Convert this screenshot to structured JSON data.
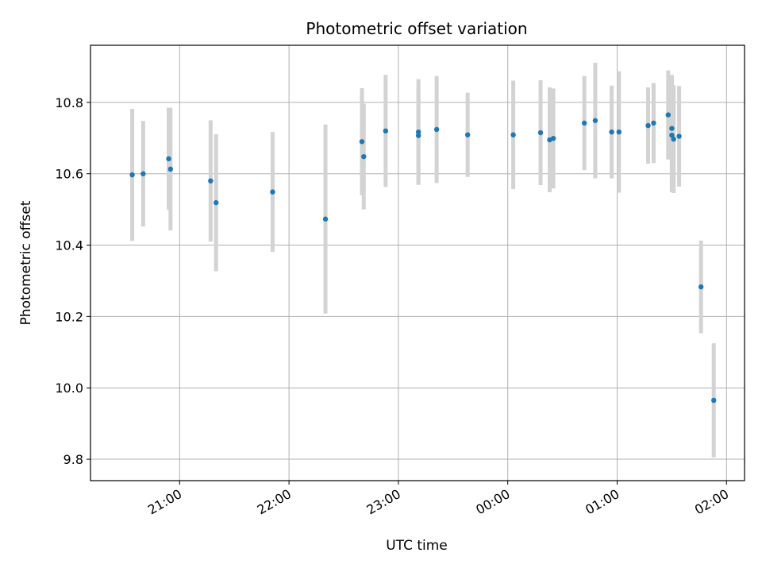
{
  "chart_data": {
    "type": "scatter",
    "title": "Photometric offset variation",
    "xlabel": "UTC time",
    "ylabel": "Photometric offset",
    "x_axis_kind": "time",
    "x_ticks": [
      "21:00",
      "22:00",
      "23:00",
      "00:00",
      "01:00",
      "02:00"
    ],
    "y_ticks": [
      9.8,
      10.0,
      10.2,
      10.4,
      10.6,
      10.8
    ],
    "ylim": [
      9.74,
      10.96
    ],
    "grid": true,
    "colors": {
      "point": "#1f77b4",
      "errorbar": "#d3d3d3",
      "grid": "#b0b0b0"
    },
    "series": [
      {
        "x": [
          "20:34",
          "20:40",
          "20:54",
          "20:55",
          "21:17",
          "21:20",
          "21:51",
          "22:20",
          "22:40",
          "22:41",
          "22:53",
          "23:11",
          "23:11",
          "23:21",
          "23:38",
          "00:03",
          "00:18",
          "00:23",
          "00:25",
          "00:42",
          "00:48",
          "00:57",
          "01:01",
          "01:17",
          "01:20",
          "01:28",
          "01:30",
          "01:30",
          "01:31",
          "01:34",
          "01:46",
          "01:53"
        ],
        "y": [
          10.597,
          10.6,
          10.642,
          10.613,
          10.58,
          10.519,
          10.549,
          10.473,
          10.69,
          10.648,
          10.72,
          10.707,
          10.717,
          10.724,
          10.709,
          10.709,
          10.715,
          10.695,
          10.699,
          10.742,
          10.749,
          10.717,
          10.717,
          10.735,
          10.742,
          10.765,
          10.727,
          10.708,
          10.697,
          10.705,
          10.283,
          9.965
        ],
        "yerr": [
          0.185,
          0.148,
          0.143,
          0.172,
          0.17,
          0.192,
          0.168,
          0.265,
          0.15,
          0.148,
          0.157,
          0.138,
          0.148,
          0.15,
          0.118,
          0.152,
          0.147,
          0.147,
          0.14,
          0.132,
          0.162,
          0.13,
          0.17,
          0.107,
          0.112,
          0.125,
          0.15,
          0.16,
          0.151,
          0.141,
          0.13,
          0.16
        ]
      }
    ]
  }
}
